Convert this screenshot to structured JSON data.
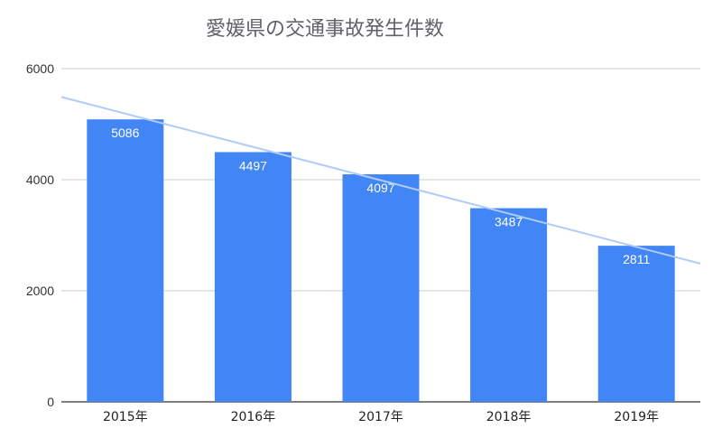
{
  "chart_data": {
    "type": "bar",
    "title": "愛媛県の交通事故発生件数",
    "categories": [
      "2015年",
      "2016年",
      "2017年",
      "2018年",
      "2019年"
    ],
    "values": [
      5086,
      4497,
      4097,
      3487,
      2811
    ],
    "data_labels": [
      "5086",
      "4497",
      "4097",
      "3487",
      "2811"
    ],
    "ylim": [
      0,
      6000
    ],
    "yticks": [
      0,
      2000,
      4000,
      6000
    ],
    "ytick_labels": [
      "0",
      "2000",
      "4000",
      "6000"
    ],
    "xlabel": "",
    "ylabel": "",
    "grid": true,
    "legend": "none",
    "trendline": {
      "type": "linear",
      "start_value": 5490,
      "end_value": 2490
    },
    "colors": {
      "bar": "#4285f4",
      "trendline": "#aecbfa",
      "grid": "#cccccc",
      "axis": "#333333"
    }
  }
}
